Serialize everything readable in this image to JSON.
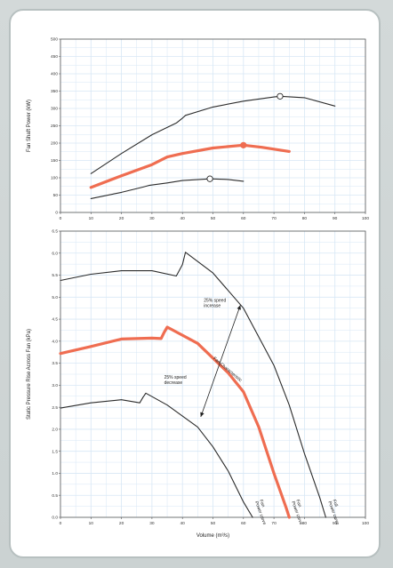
{
  "colors": {
    "accent": "#ef6d51",
    "line": "#2b2b2b",
    "grid": "#d7e7f5",
    "frame": "#b7c0c0"
  },
  "chart_data": [
    {
      "type": "line",
      "title": "",
      "xlabel": "",
      "ylabel": "Fan Shaft Power (kW)",
      "xlim": [
        0,
        100
      ],
      "ylim": [
        0,
        500
      ],
      "x_ticks": [
        "0",
        "10",
        "20",
        "30",
        "40",
        "50",
        "60",
        "70",
        "80",
        "90",
        "100"
      ],
      "y_ticks": [
        "0",
        "50",
        "100",
        "150",
        "200",
        "250",
        "300",
        "350",
        "400",
        "450",
        "500"
      ],
      "grid": true,
      "series": [
        {
          "color": "#2b2b2b",
          "points": [
            [
              10,
              112
            ],
            [
              20,
              170
            ],
            [
              30,
              224
            ],
            [
              38,
              258
            ],
            [
              40,
              272
            ],
            [
              41,
              280
            ],
            [
              50,
              304
            ],
            [
              60,
              321
            ],
            [
              70,
              333
            ],
            [
              72,
              335
            ],
            [
              80,
              331
            ],
            [
              90,
              307
            ]
          ],
          "marker": {
            "x": 72,
            "y": 335,
            "style": "hollow"
          }
        },
        {
          "color": "#ef6d51",
          "points": [
            [
              10,
              72
            ],
            [
              20,
              106
            ],
            [
              30,
              138
            ],
            [
              35,
              160
            ],
            [
              40,
              170
            ],
            [
              50,
              186
            ],
            [
              60,
              194
            ],
            [
              66,
              188
            ],
            [
              75,
              176
            ]
          ],
          "marker": {
            "x": 60,
            "y": 194,
            "style": "filled"
          }
        },
        {
          "color": "#2b2b2b",
          "points": [
            [
              10,
              40
            ],
            [
              20,
              58
            ],
            [
              27,
              73
            ],
            [
              29,
              78
            ],
            [
              35,
              85
            ],
            [
              40,
              92
            ],
            [
              49,
              97
            ],
            [
              55,
              95
            ],
            [
              60,
              90
            ]
          ],
          "marker": {
            "x": 49,
            "y": 97,
            "style": "hollow"
          }
        }
      ]
    },
    {
      "type": "line",
      "title": "",
      "xlabel": "Volume (m³/s)",
      "ylabel": "Static Pressure Rise Across Fan (kPa)",
      "xlim": [
        0,
        100
      ],
      "ylim": [
        0,
        6.5
      ],
      "x_ticks": [
        "0",
        "10",
        "20",
        "30",
        "40",
        "50",
        "60",
        "70",
        "80",
        "90",
        "100"
      ],
      "y_ticks": [
        "0.0",
        "0.5",
        "1.0",
        "1.5",
        "2.0",
        "2.5",
        "3.0",
        "3.5",
        "4.0",
        "4.5",
        "5.0",
        "5.5",
        "6.0",
        "6.5"
      ],
      "grid": true,
      "series": [
        {
          "color": "#2b2b2b",
          "points": [
            [
              0,
              5.38
            ],
            [
              10,
              5.52
            ],
            [
              20,
              5.6
            ],
            [
              30,
              5.6
            ],
            [
              38,
              5.48
            ],
            [
              40,
              5.74
            ],
            [
              41,
              6.02
            ],
            [
              50,
              5.55
            ],
            [
              60,
              4.75
            ],
            [
              70,
              3.45
            ],
            [
              75,
              2.55
            ],
            [
              80,
              1.45
            ],
            [
              85,
              0.45
            ],
            [
              87,
              0
            ]
          ],
          "label": [
            "Full",
            "Power curve"
          ]
        },
        {
          "color": "#ef6d51",
          "points": [
            [
              0,
              3.72
            ],
            [
              10,
              3.88
            ],
            [
              20,
              4.05
            ],
            [
              30,
              4.07
            ],
            [
              33,
              4.06
            ],
            [
              34,
              4.2
            ],
            [
              35,
              4.32
            ],
            [
              45,
              3.95
            ],
            [
              55,
              3.28
            ],
            [
              60,
              2.85
            ],
            [
              65,
              2.05
            ],
            [
              70,
              1.0
            ],
            [
              74,
              0.22
            ],
            [
              75,
              0
            ]
          ],
          "label": [
            "Fan",
            "Power curve"
          ]
        },
        {
          "color": "#2b2b2b",
          "points": [
            [
              0,
              2.48
            ],
            [
              10,
              2.6
            ],
            [
              20,
              2.67
            ],
            [
              26,
              2.6
            ],
            [
              27,
              2.72
            ],
            [
              28,
              2.82
            ],
            [
              35,
              2.55
            ],
            [
              45,
              2.05
            ],
            [
              50,
              1.6
            ],
            [
              55,
              1.05
            ],
            [
              60,
              0.35
            ],
            [
              63,
              0
            ]
          ],
          "label": [
            "Fan",
            "Power curve"
          ]
        }
      ],
      "annotations": {
        "upper": [
          "25% speed",
          "increase"
        ],
        "lower": [
          "25% speed",
          "decrease"
        ],
        "diagonal": "Fan Characteristic"
      },
      "arrow": {
        "from": [
          46,
          2.28
        ],
        "to": [
          59,
          4.82
        ]
      }
    }
  ]
}
